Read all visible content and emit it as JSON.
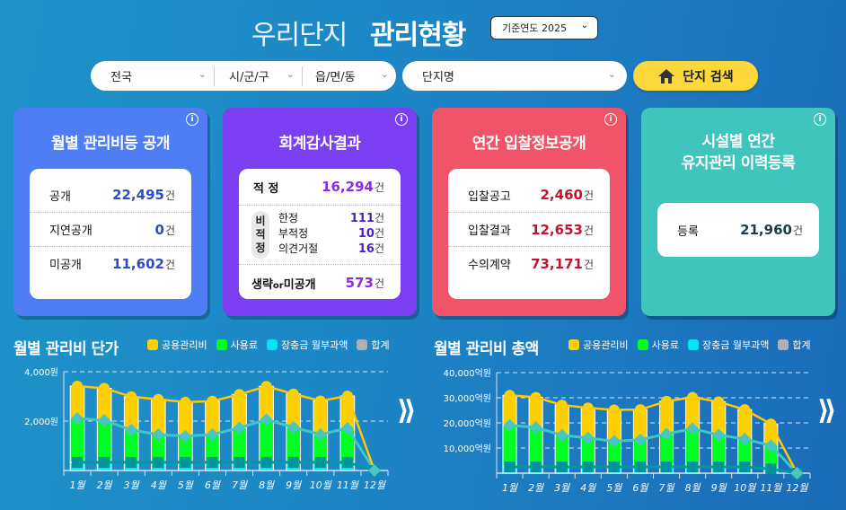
{
  "header": {
    "title_light": "우리단지",
    "title_bold": "관리현황",
    "year_select": {
      "label": "기준연도 2025",
      "value": "2025"
    }
  },
  "search": {
    "region_sido": "전국",
    "region_sigungu": "시/군/구",
    "region_eupmyeondong": "읍/면/동",
    "complex_name": "단지명",
    "search_button": "단지 검색"
  },
  "cards": {
    "monthly_fee": {
      "title": "월별 관리비등 공개",
      "rows": [
        {
          "label": "공개",
          "value": "22,495",
          "unit": "건"
        },
        {
          "label": "지연공개",
          "value": "0",
          "unit": "건"
        },
        {
          "label": "미공개",
          "value": "11,602",
          "unit": "건"
        }
      ]
    },
    "audit": {
      "title": "회계감사결과",
      "proper": {
        "label": "적 정",
        "value": "16,294",
        "unit": "건"
      },
      "nonconforming_label": [
        "비",
        "적",
        "정"
      ],
      "nonconforming": [
        {
          "label": "한정",
          "value": "111",
          "unit": "건"
        },
        {
          "label": "부적정",
          "value": "10",
          "unit": "건"
        },
        {
          "label": "의견거절",
          "value": "16",
          "unit": "건"
        }
      ],
      "omitted": {
        "label_a": "생략",
        "label_or": "or",
        "label_b": "미공개",
        "value": "573",
        "unit": "건"
      }
    },
    "bidding": {
      "title": "연간 입찰정보공개",
      "rows": [
        {
          "label": "입찰공고",
          "value": "2,460",
          "unit": "건"
        },
        {
          "label": "입찰결과",
          "value": "12,653",
          "unit": "건"
        },
        {
          "label": "수의계약",
          "value": "73,171",
          "unit": "건"
        }
      ]
    },
    "facility": {
      "title_line1": "시설별 연간",
      "title_line2": "유지관리 이력등록",
      "rows": [
        {
          "label": "등록",
          "value": "21,960",
          "unit": "건"
        }
      ]
    }
  },
  "legend": {
    "common": "공용관리비",
    "usage": "사용료",
    "reserve": "장충금 월부과액",
    "total": "합계"
  },
  "colors": {
    "common": "#ffd000",
    "usage": "#00ff22",
    "reserve": "#00e5f0",
    "total": "#b0b0b0",
    "card_blue": "#4e7df4",
    "card_purple": "#7b3ff2",
    "card_red": "#f05468",
    "card_teal": "#40c5bd",
    "search_button": "#fcd83b"
  },
  "chart_data": [
    {
      "type": "bar",
      "title": "월별 관리비 단가",
      "stacked": true,
      "categories": [
        "1월",
        "2월",
        "3월",
        "4월",
        "5월",
        "6월",
        "7월",
        "8월",
        "9월",
        "10월",
        "11월",
        "12월"
      ],
      "yticks": [
        "2,000원",
        "4,000원"
      ],
      "ylim": [
        0,
        4000
      ],
      "series": [
        {
          "name": "장충금 월부과액",
          "values": [
            330,
            330,
            330,
            330,
            330,
            330,
            330,
            330,
            330,
            330,
            330,
            0
          ]
        },
        {
          "name": "사용료",
          "values": [
            1780,
            1700,
            1310,
            1130,
            1060,
            1130,
            1400,
            1730,
            1420,
            1130,
            1380,
            0
          ]
        },
        {
          "name": "공용관리비",
          "values": [
            1310,
            1300,
            1350,
            1420,
            1380,
            1350,
            1350,
            1350,
            1350,
            1360,
            1310,
            0
          ]
        },
        {
          "name": "합계",
          "values": [
            3420,
            3330,
            2990,
            2880,
            2770,
            2810,
            3080,
            3410,
            3100,
            2820,
            3020,
            0
          ]
        }
      ],
      "ylabel": "",
      "xlabel": "",
      "legend_position": "top",
      "grid": true
    },
    {
      "type": "bar",
      "title": "월별 관리비 총액",
      "stacked": true,
      "categories": [
        "1월",
        "2월",
        "3월",
        "4월",
        "5월",
        "6월",
        "7월",
        "8월",
        "9월",
        "10월",
        "11월",
        "12월"
      ],
      "yticks": [
        "10,000억원",
        "20,000억원",
        "30,000억원",
        "40,000억원"
      ],
      "ylim": [
        0,
        40000
      ],
      "series": [
        {
          "name": "장충금 월부과액",
          "values": [
            2500,
            2500,
            2500,
            2500,
            2500,
            2500,
            2500,
            2500,
            2500,
            2500,
            1700,
            0
          ]
        },
        {
          "name": "사용료",
          "values": [
            16500,
            15700,
            12600,
            11500,
            10200,
            10800,
            13100,
            15200,
            12700,
            11100,
            9300,
            0
          ]
        },
        {
          "name": "공용관리비",
          "values": [
            12000,
            12000,
            12000,
            12000,
            12500,
            12000,
            13000,
            12500,
            13200,
            11700,
            8600,
            0
          ]
        },
        {
          "name": "합계",
          "values": [
            31000,
            30200,
            27100,
            26000,
            25200,
            25300,
            28600,
            30200,
            28400,
            25300,
            19600,
            0
          ]
        }
      ],
      "ylabel": "",
      "xlabel": "",
      "legend_position": "top",
      "grid": true
    }
  ]
}
